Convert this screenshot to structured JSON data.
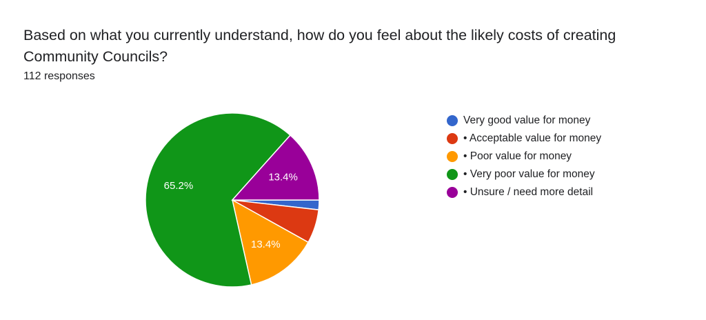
{
  "question": {
    "title": "Based on what you currently understand, how do you feel about the likely costs of creating Community Councils?",
    "response_count": "112 responses"
  },
  "chart_data": {
    "type": "pie",
    "categories": [
      "Very good value for money",
      "• Acceptable value for money",
      "• Poor value for money",
      "• Very poor value for money",
      "• Unsure / need more detail"
    ],
    "values": [
      1.8,
      6.3,
      13.4,
      65.2,
      13.4
    ],
    "colors": [
      "#3366cc",
      "#dc3912",
      "#ff9900",
      "#109618",
      "#990099"
    ],
    "data_labels": [
      "",
      "",
      "13.4%",
      "65.2%",
      "13.4%"
    ],
    "legend_position": "right"
  }
}
